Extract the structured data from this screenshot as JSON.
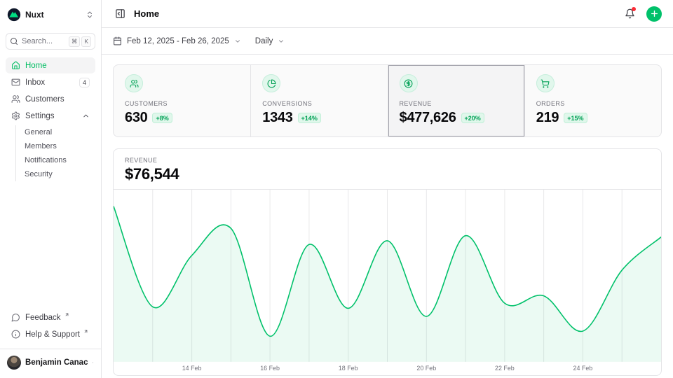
{
  "brand": {
    "name": "Nuxt"
  },
  "sidebar": {
    "search": {
      "placeholder": "Search...",
      "kbd": [
        "⌘",
        "K"
      ]
    },
    "items": [
      {
        "label": "Home",
        "icon": "house-icon",
        "active": true
      },
      {
        "label": "Inbox",
        "icon": "mail-icon",
        "badge": "4"
      },
      {
        "label": "Customers",
        "icon": "users-icon"
      },
      {
        "label": "Settings",
        "icon": "gear-icon",
        "expanded": true,
        "children": [
          {
            "label": "General"
          },
          {
            "label": "Members"
          },
          {
            "label": "Notifications"
          },
          {
            "label": "Security"
          }
        ]
      }
    ],
    "footer_items": [
      {
        "label": "Feedback",
        "icon": "message-circle-icon",
        "external": true
      },
      {
        "label": "Help & Support",
        "icon": "info-icon",
        "external": true
      }
    ],
    "user": {
      "name": "Benjamin Canac"
    }
  },
  "header": {
    "title": "Home"
  },
  "toolbar": {
    "date_range": "Feb 12, 2025 - Feb 26, 2025",
    "period": "Daily"
  },
  "stats": [
    {
      "label": "CUSTOMERS",
      "value": "630",
      "delta": "+8%",
      "icon": "users-icon",
      "selected": false
    },
    {
      "label": "CONVERSIONS",
      "value": "1343",
      "delta": "+14%",
      "icon": "pie-chart-icon",
      "selected": false
    },
    {
      "label": "REVENUE",
      "value": "$477,626",
      "delta": "+20%",
      "icon": "circle-dollar-icon",
      "selected": true
    },
    {
      "label": "ORDERS",
      "value": "219",
      "delta": "+15%",
      "icon": "shopping-cart-icon",
      "selected": false
    }
  ],
  "chart_panel": {
    "label": "REVENUE",
    "value": "$76,544"
  },
  "chart_data": {
    "type": "area",
    "title": "REVENUE",
    "x": [
      "Feb 12",
      "Feb 13",
      "Feb 14",
      "Feb 15",
      "Feb 16",
      "Feb 17",
      "Feb 18",
      "Feb 19",
      "Feb 20",
      "Feb 21",
      "Feb 22",
      "Feb 23",
      "Feb 24",
      "Feb 25",
      "Feb 26"
    ],
    "values": [
      95400,
      33750,
      65250,
      81900,
      15750,
      72000,
      32850,
      74250,
      27900,
      77400,
      36000,
      40500,
      18900,
      56250,
      76544
    ],
    "x_tick_labels": [
      "14 Feb",
      "16 Feb",
      "18 Feb",
      "20 Feb",
      "22 Feb",
      "24 Feb"
    ],
    "x_tick_indices": [
      2,
      4,
      6,
      8,
      10,
      12
    ],
    "ylim": [
      0,
      100000
    ],
    "grid": "vertical-daily",
    "legend": "none",
    "line_color": "#00C16A",
    "fill_color": "rgba(0,193,106,0.08)",
    "grid_color": "#E8E8EA",
    "tick_color": "#71717A"
  },
  "colors": {
    "accent": "#00C16A",
    "accent_text": "#00A155",
    "panel_border": "#E4E4E7",
    "muted": "#71717A",
    "notification_dot": "#FB2C36"
  }
}
